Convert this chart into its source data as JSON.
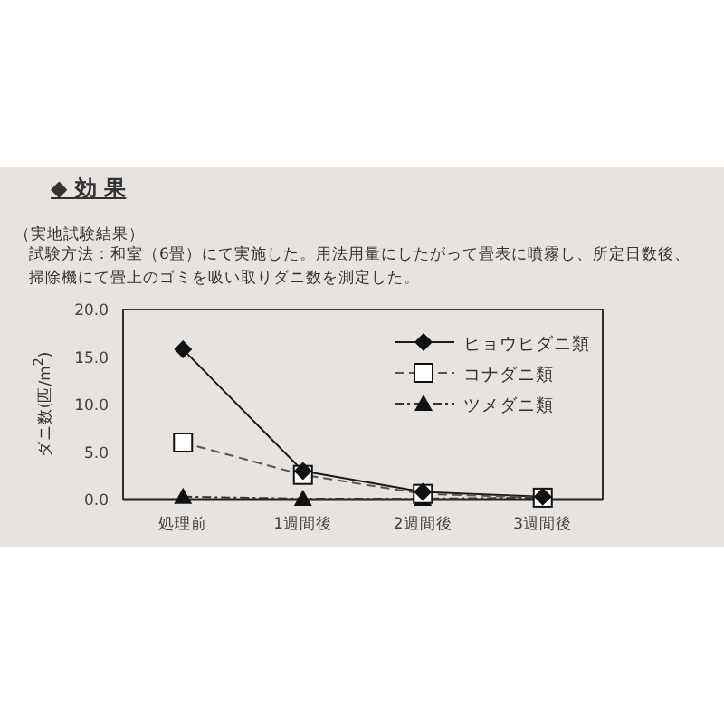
{
  "chart_data": {
    "type": "line",
    "title": "◆ 効 果",
    "subtitle": "（実地試験結果）",
    "annotations": [
      "試験方法：和室（6畳）にて実施した。用法用量にしたがって畳表に噴霧し、所定日数後、掃除機にて畳上のゴミを吸い取りダニ数を測定した。"
    ],
    "ylabel": "ダニ数(匹/m$^{2}$)",
    "categories": [
      "処理前",
      "1週間後",
      "2週間後",
      "3週間後"
    ],
    "ylim": [
      0,
      20
    ],
    "yticks": [
      {
        "value": 0,
        "label": "0.0"
      },
      {
        "value": 5,
        "label": "5.0"
      },
      {
        "value": 10,
        "label": "10.0"
      },
      {
        "value": 15,
        "label": "15.0"
      },
      {
        "value": 20,
        "label": "20.0"
      }
    ],
    "legend": "top right",
    "series": [
      {
        "name": "ヒョウヒダニ類",
        "color": "#1a1a1a",
        "marker": "diamond",
        "line_style": "solid",
        "values": [
          15.8,
          3.0,
          0.8,
          0.3
        ]
      },
      {
        "name": "コナダニ類",
        "color": "#555555",
        "marker": "square",
        "line_style": "dashed",
        "values": [
          6.0,
          2.6,
          0.6,
          0.2
        ]
      },
      {
        "name": "ツメダニ類",
        "color": "#333333",
        "marker": "triangle",
        "line_style": "dashdot",
        "values": [
          0.3,
          0.1,
          0.1,
          0.2
        ]
      }
    ]
  }
}
